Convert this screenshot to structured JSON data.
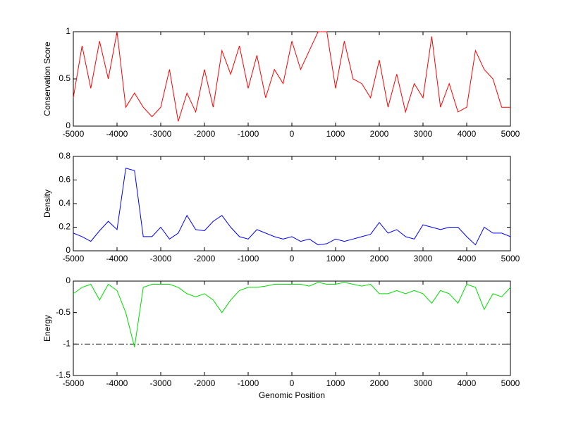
{
  "chart_data": [
    {
      "type": "line",
      "ylabel": "Conservation Score",
      "color": "#ff0000",
      "x": [
        -5000,
        -4800,
        -4600,
        -4400,
        -4200,
        -4000,
        -3800,
        -3600,
        -3400,
        -3200,
        -3000,
        -2800,
        -2600,
        -2400,
        -2200,
        -2000,
        -1800,
        -1600,
        -1400,
        -1200,
        -1000,
        -800,
        -600,
        -400,
        -200,
        0,
        200,
        400,
        600,
        800,
        1000,
        1200,
        1400,
        1600,
        1800,
        2000,
        2200,
        2400,
        2600,
        2800,
        3000,
        3200,
        3400,
        3600,
        3800,
        4000,
        4200,
        4400,
        4600,
        4800,
        5000
      ],
      "values": [
        0.3,
        0.85,
        0.4,
        0.9,
        0.5,
        1,
        0.2,
        0.35,
        0.2,
        0.1,
        0.2,
        0.6,
        0.05,
        0.35,
        0.15,
        0.6,
        0.2,
        0.8,
        0.55,
        0.85,
        0.4,
        0.75,
        0.3,
        0.6,
        0.45,
        0.9,
        0.6,
        0.8,
        1,
        1,
        0.4,
        0.9,
        0.5,
        0.45,
        0.3,
        0.7,
        0.2,
        0.55,
        0.15,
        0.45,
        0.3,
        0.95,
        0.2,
        0.45,
        0.15,
        0.2,
        0.8,
        0.6,
        0.5,
        0.2,
        0.2
      ],
      "xlim": [
        -5000,
        5000
      ],
      "xticks": [
        -5000,
        -4000,
        -3000,
        -2000,
        -1000,
        0,
        1000,
        2000,
        3000,
        4000,
        5000
      ],
      "ylim": [
        0,
        1
      ],
      "yticks": [
        0,
        0.5,
        1
      ]
    },
    {
      "type": "line",
      "ylabel": "Density",
      "color": "#0000ff",
      "x": [
        -5000,
        -4800,
        -4600,
        -4400,
        -4200,
        -4000,
        -3800,
        -3600,
        -3400,
        -3200,
        -3000,
        -2800,
        -2600,
        -2400,
        -2200,
        -2000,
        -1800,
        -1600,
        -1400,
        -1200,
        -1000,
        -800,
        -600,
        -400,
        -200,
        0,
        200,
        400,
        600,
        800,
        1000,
        1200,
        1400,
        1600,
        1800,
        2000,
        2200,
        2400,
        2600,
        2800,
        3000,
        3200,
        3400,
        3600,
        3800,
        4000,
        4200,
        4400,
        4600,
        4800,
        5000
      ],
      "values": [
        0.15,
        0.12,
        0.08,
        0.17,
        0.25,
        0.18,
        0.7,
        0.68,
        0.12,
        0.12,
        0.2,
        0.1,
        0.15,
        0.3,
        0.18,
        0.17,
        0.25,
        0.3,
        0.2,
        0.12,
        0.1,
        0.18,
        0.15,
        0.12,
        0.1,
        0.12,
        0.08,
        0.1,
        0.05,
        0.06,
        0.1,
        0.08,
        0.1,
        0.12,
        0.14,
        0.24,
        0.15,
        0.18,
        0.12,
        0.1,
        0.22,
        0.2,
        0.18,
        0.2,
        0.2,
        0.12,
        0.05,
        0.2,
        0.15,
        0.15,
        0.12
      ],
      "xlim": [
        -5000,
        5000
      ],
      "xticks": [
        -5000,
        -4000,
        -3000,
        -2000,
        -1000,
        0,
        1000,
        2000,
        3000,
        4000,
        5000
      ],
      "ylim": [
        0,
        0.8
      ],
      "yticks": [
        0,
        0.2,
        0.4,
        0.6,
        0.8
      ]
    },
    {
      "type": "line",
      "ylabel": "Energy",
      "xlabel": "Genomic Position",
      "color": "#00dd00",
      "x": [
        -5000,
        -4800,
        -4600,
        -4400,
        -4200,
        -4000,
        -3800,
        -3600,
        -3400,
        -3200,
        -3000,
        -2800,
        -2600,
        -2400,
        -2200,
        -2000,
        -1800,
        -1600,
        -1400,
        -1200,
        -1000,
        -800,
        -600,
        -400,
        -200,
        0,
        200,
        400,
        600,
        800,
        1000,
        1200,
        1400,
        1600,
        1800,
        2000,
        2200,
        2400,
        2600,
        2800,
        3000,
        3200,
        3400,
        3600,
        3800,
        4000,
        4200,
        4400,
        4600,
        4800,
        5000
      ],
      "values": [
        -0.2,
        -0.1,
        -0.05,
        -0.3,
        -0.05,
        -0.15,
        -0.5,
        -1.05,
        -0.1,
        -0.05,
        -0.05,
        -0.05,
        -0.1,
        -0.2,
        -0.25,
        -0.2,
        -0.3,
        -0.5,
        -0.3,
        -0.15,
        -0.1,
        -0.1,
        -0.08,
        -0.05,
        -0.05,
        -0.05,
        -0.05,
        -0.08,
        -0.02,
        -0.05,
        -0.05,
        -0.02,
        -0.05,
        -0.08,
        -0.05,
        -0.2,
        -0.2,
        -0.15,
        -0.2,
        -0.15,
        -0.2,
        -0.35,
        -0.15,
        -0.2,
        -0.35,
        -0.05,
        -0.1,
        -0.45,
        -0.2,
        -0.25,
        -0.1
      ],
      "hlines": [
        -1
      ],
      "xlim": [
        -5000,
        5000
      ],
      "xticks": [
        -5000,
        -4000,
        -3000,
        -2000,
        -1000,
        0,
        1000,
        2000,
        3000,
        4000,
        5000
      ],
      "ylim": [
        -1.5,
        0
      ],
      "yticks": [
        -1.5,
        -1,
        -0.5,
        0
      ]
    }
  ]
}
